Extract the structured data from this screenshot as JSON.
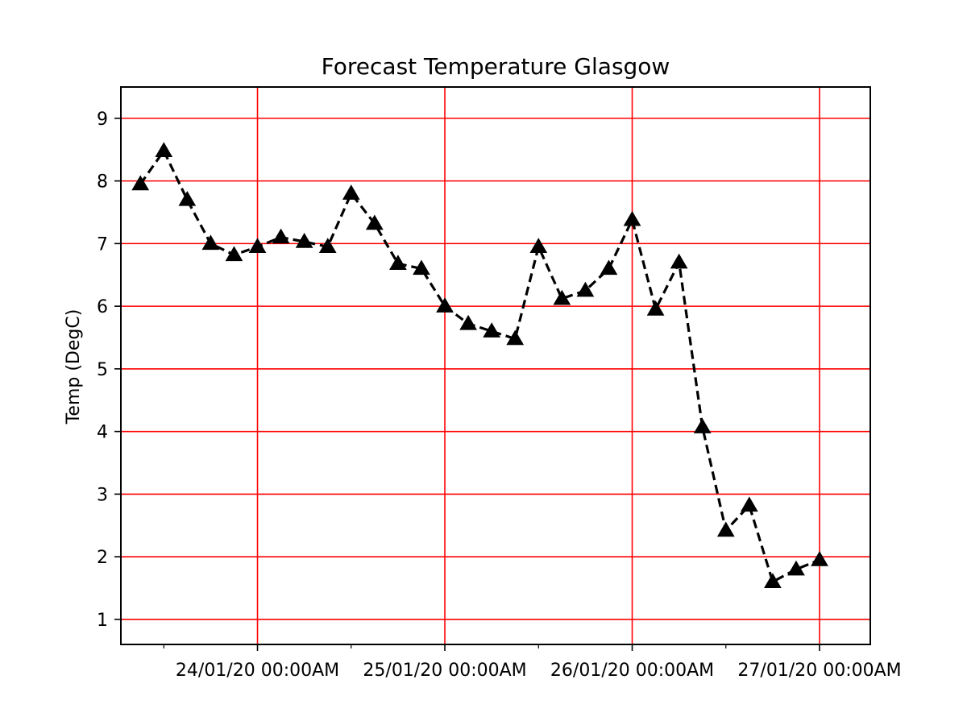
{
  "chart_data": {
    "type": "line",
    "title": "Forecast Temperature Glasgow",
    "xlabel": "",
    "ylabel": "Temp (DegC)",
    "ylim": [
      0.6,
      9.5
    ],
    "yticks": [
      1,
      2,
      3,
      4,
      5,
      6,
      7,
      8,
      9
    ],
    "xlim": [
      "2020-01-23 06:30",
      "2020-01-27 06:30"
    ],
    "xticks_major": [
      {
        "x": "2020-01-24 00:00",
        "label": "24/01/20 00:00AM"
      },
      {
        "x": "2020-01-25 00:00",
        "label": "25/01/20 00:00AM"
      },
      {
        "x": "2020-01-26 00:00",
        "label": "26/01/20 00:00AM"
      },
      {
        "x": "2020-01-27 00:00",
        "label": "27/01/20 00:00AM"
      }
    ],
    "xticks_minor": [
      "2020-01-23 12:00",
      "2020-01-24 12:00",
      "2020-01-25 12:00",
      "2020-01-26 12:00"
    ],
    "grid": true,
    "colors": {
      "grid": "#ff0000",
      "line": "#000000",
      "marker": "#000000"
    },
    "marker": "triangle",
    "line_style": "dashed",
    "series": [
      {
        "x": [
          "2020-01-23 09:00",
          "2020-01-23 12:00",
          "2020-01-23 15:00",
          "2020-01-23 18:00",
          "2020-01-23 21:00",
          "2020-01-24 00:00",
          "2020-01-24 03:00",
          "2020-01-24 06:00",
          "2020-01-24 09:00",
          "2020-01-24 12:00",
          "2020-01-24 15:00",
          "2020-01-24 18:00",
          "2020-01-24 21:00",
          "2020-01-25 00:00",
          "2020-01-25 03:00",
          "2020-01-25 06:00",
          "2020-01-25 09:00",
          "2020-01-25 12:00",
          "2020-01-25 15:00",
          "2020-01-25 18:00",
          "2020-01-25 21:00",
          "2020-01-26 00:00",
          "2020-01-26 03:00",
          "2020-01-26 06:00",
          "2020-01-26 09:00",
          "2020-01-26 12:00",
          "2020-01-26 15:00",
          "2020-01-26 18:00",
          "2020-01-26 21:00",
          "2020-01-27 00:00"
        ],
        "values": [
          7.95,
          8.48,
          7.7,
          7.0,
          6.82,
          6.95,
          7.1,
          7.03,
          6.95,
          7.8,
          7.32,
          6.68,
          6.6,
          6.0,
          5.72,
          5.6,
          5.48,
          6.95,
          6.12,
          6.25,
          6.6,
          7.38,
          5.95,
          6.7,
          4.07,
          2.42,
          2.82,
          1.6,
          1.8,
          1.95
        ]
      }
    ]
  }
}
